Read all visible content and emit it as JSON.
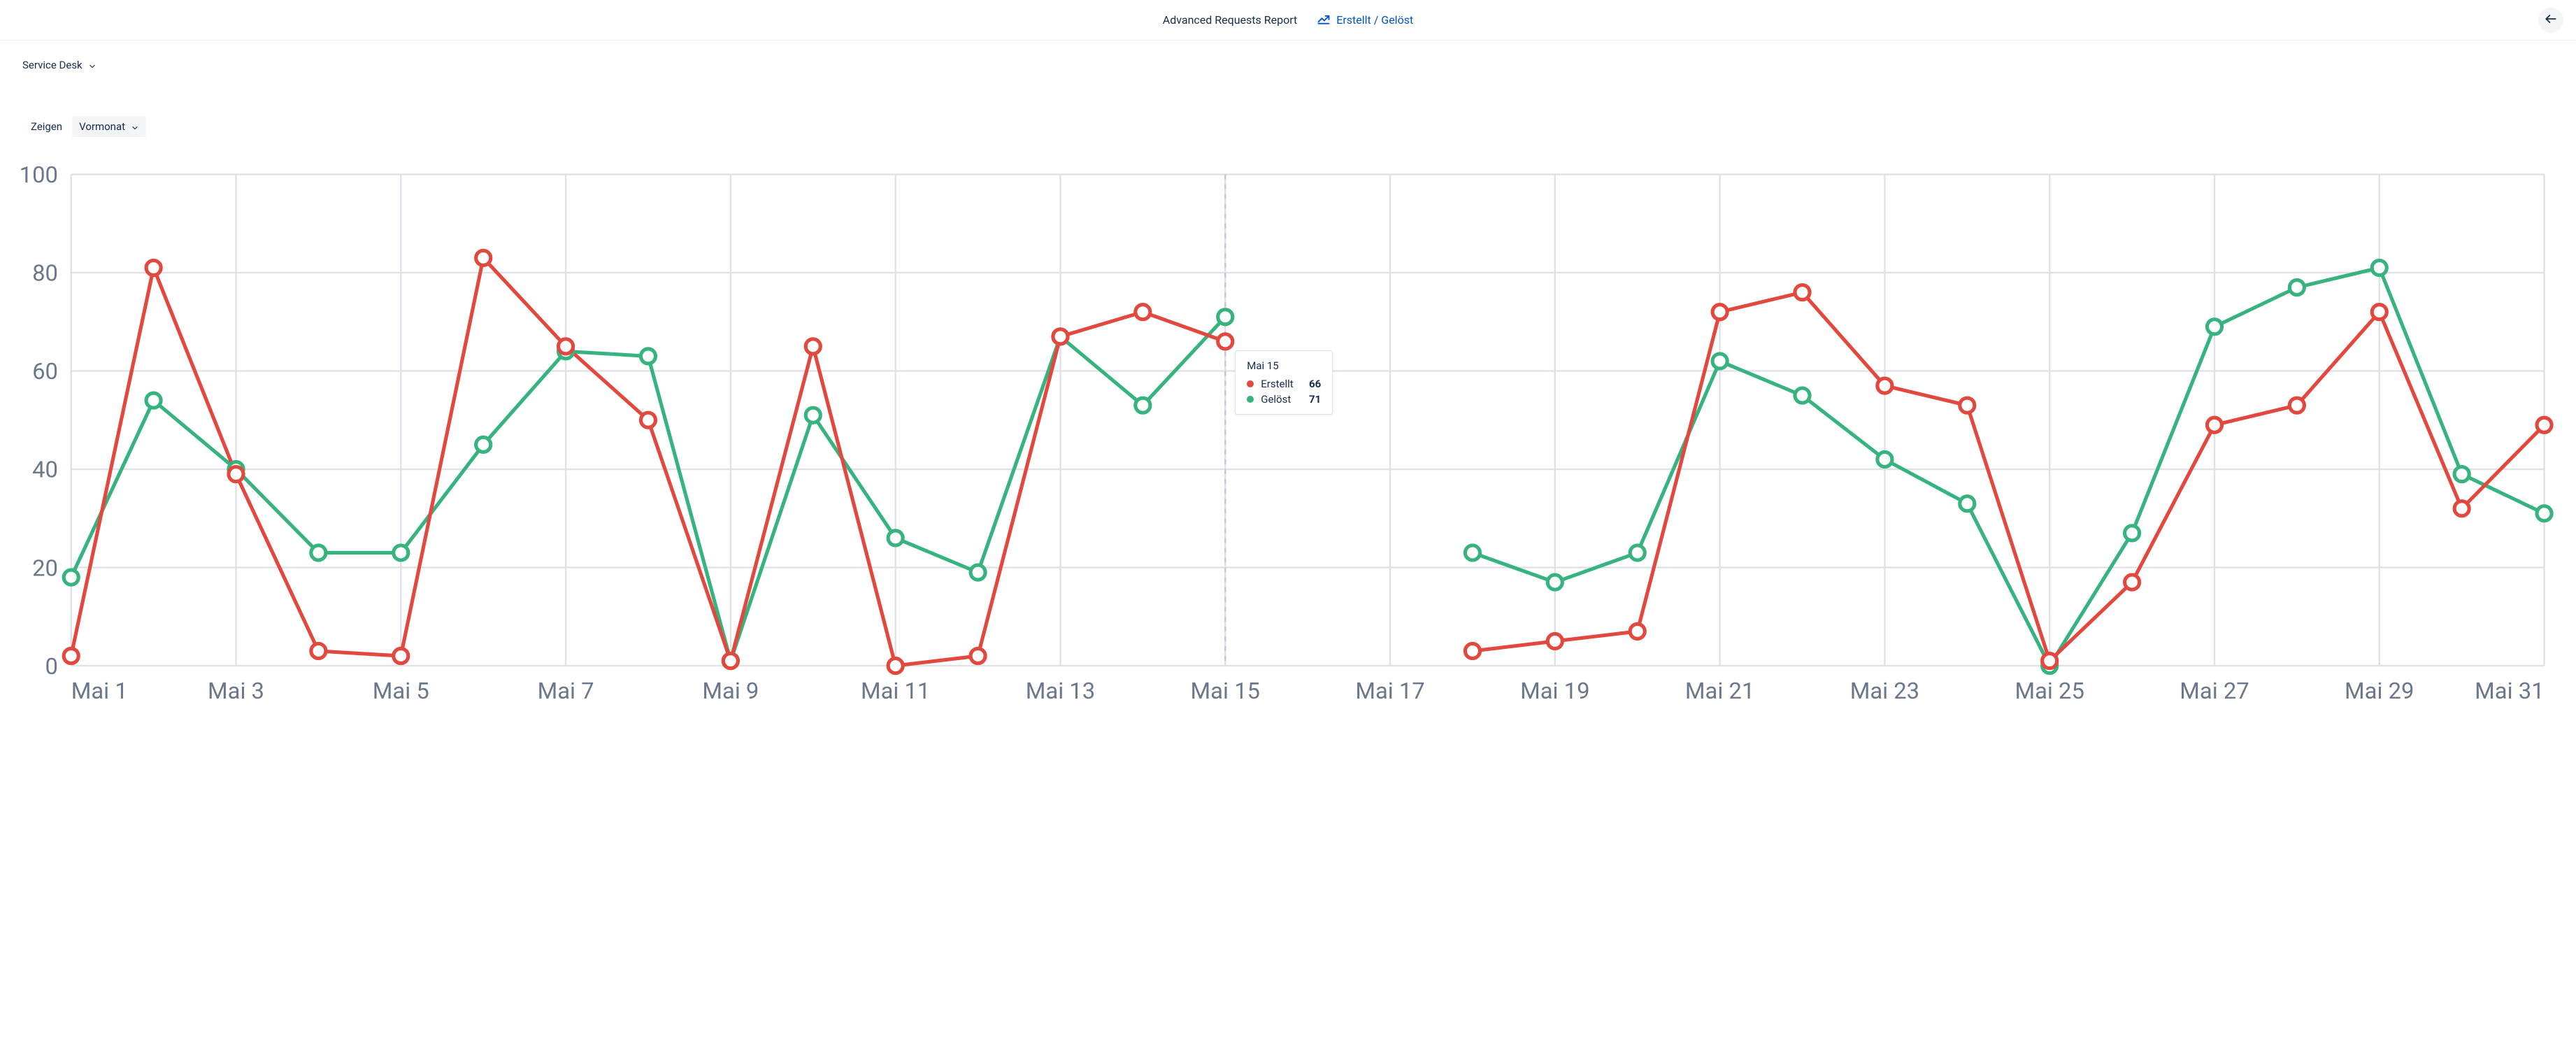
{
  "header": {
    "title": "Advanced Requests Report",
    "link_label": "Erstellt / Gelöst"
  },
  "filters": {
    "project_label": "Service Desk",
    "show_label": "Zeigen",
    "range_label": "Vormonat"
  },
  "chart": {
    "type": "line",
    "background_color": "#ffffff",
    "grid_color": "#dfe1e6",
    "axis_text_color": "#6b778c",
    "ylim": [
      0,
      100
    ],
    "ytick_step": 20,
    "yticks": [
      0,
      20,
      40,
      60,
      80,
      100
    ],
    "x_label_prefix": "Mai ",
    "x_tick_step": 2,
    "x_categories": [
      "Mai 1",
      "Mai 2",
      "Mai 3",
      "Mai 4",
      "Mai 5",
      "Mai 6",
      "Mai 7",
      "Mai 8",
      "Mai 9",
      "Mai 10",
      "Mai 11",
      "Mai 12",
      "Mai 13",
      "Mai 14",
      "Mai 15",
      "Mai 16",
      "Mai 17",
      "Mai 18",
      "Mai 19",
      "Mai 20",
      "Mai 21",
      "Mai 22",
      "Mai 23",
      "Mai 24",
      "Mai 25",
      "Mai 26",
      "Mai 27",
      "Mai 28",
      "Mai 29",
      "Mai 30",
      "Mai 31"
    ],
    "line_width": 2.2,
    "marker_radius": 4.5,
    "marker_fill": "#ffffff",
    "hover_index": 14,
    "series": [
      {
        "name": "Erstellt",
        "color": "#e2483d",
        "values": [
          2,
          81,
          39,
          3,
          2,
          83,
          65,
          50,
          1,
          65,
          0,
          2,
          67,
          72,
          66,
          null,
          null,
          3,
          5,
          7,
          72,
          76,
          57,
          53,
          1,
          17,
          49,
          53,
          72,
          32,
          49
        ]
      },
      {
        "name": "Gelöst",
        "color": "#36b37e",
        "values": [
          18,
          54,
          40,
          23,
          23,
          45,
          64,
          63,
          1,
          51,
          26,
          19,
          67,
          53,
          71,
          null,
          null,
          23,
          17,
          23,
          62,
          55,
          42,
          33,
          0,
          27,
          69,
          77,
          81,
          39,
          31
        ]
      }
    ]
  },
  "tooltip": {
    "title": "Mai 15",
    "rows": [
      {
        "color": "#e2483d",
        "label": "Erstellt",
        "value": "66"
      },
      {
        "color": "#36b37e",
        "label": "Gelöst",
        "value": "71"
      }
    ]
  }
}
